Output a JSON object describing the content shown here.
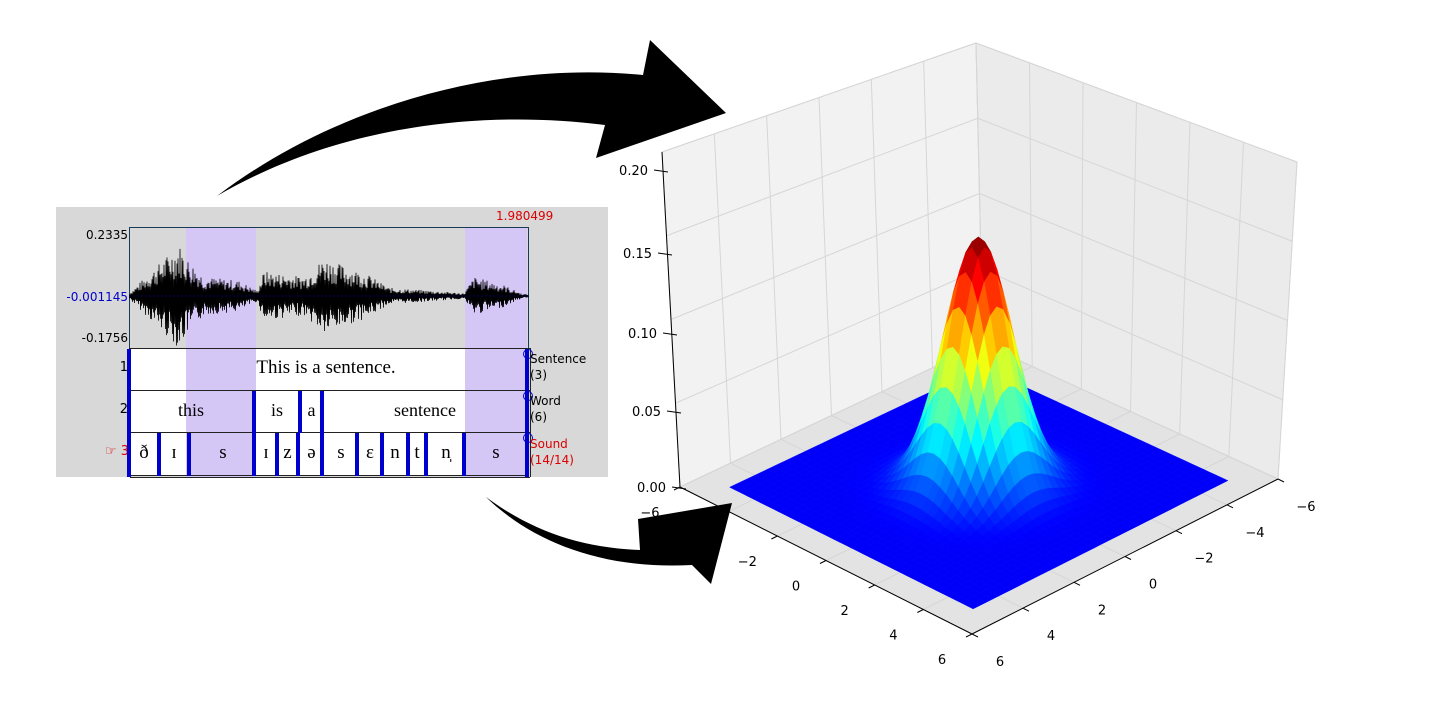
{
  "praat": {
    "time_end": "1.980499",
    "y_max": "0.2335",
    "y_cursor": "-0.001145",
    "y_min": "-0.1756",
    "cursor_symbol": "☞",
    "tiers": [
      {
        "number": "1",
        "name": "Sentence",
        "count": "(3)",
        "intervals": [
          "This is a sentence."
        ]
      },
      {
        "number": "2",
        "name": "Word",
        "count": "(6)",
        "intervals": [
          "this",
          "is",
          "a",
          "sentence"
        ]
      },
      {
        "number": "3",
        "name": "Sound",
        "count": "(14/14)",
        "intervals": [
          "ð",
          "ɪ",
          "s",
          "ɪ",
          "z",
          "ə",
          "s",
          "ɛ",
          "n",
          "t",
          "n̩",
          "s"
        ]
      }
    ],
    "colors": {
      "selection": "#d5c7f5",
      "boundary": "#0000cc",
      "active": "#dd0000",
      "cursor": "#0000cc"
    }
  },
  "plot3d": {
    "z_ticks": [
      "0.00",
      "0.05",
      "0.10",
      "0.15",
      "0.20"
    ],
    "x_ticks": [
      "−6",
      "−4",
      "−2",
      "0",
      "2",
      "4",
      "6"
    ],
    "y_ticks": [
      "−6",
      "−4",
      "−2",
      "0",
      "2",
      "4",
      "6"
    ],
    "colormap": "jet",
    "floor_color": "#00008f"
  },
  "icons": {
    "arrow_top": "curved-arrow-icon",
    "arrow_bottom": "curved-arrow-icon"
  }
}
